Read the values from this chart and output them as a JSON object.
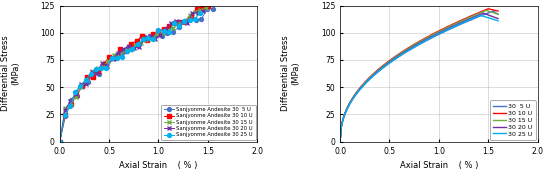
{
  "series": [
    {
      "label_left": "Sanjyonme Andesite 30  5 U",
      "label_right": "30  5 U",
      "color": "#4472C4",
      "marker": "o",
      "peak_strain": 1.55,
      "peak_stress": 120.0,
      "final_stress": 117.0,
      "conf": 5
    },
    {
      "label_left": "Sanjyonme Andesite 30 10 U",
      "label_right": "30 10 U",
      "color": "#FF0000",
      "marker": "s",
      "peak_strain": 1.5,
      "peak_stress": 122.0,
      "final_stress": 120.0,
      "conf": 10
    },
    {
      "label_left": "Sanjyonme Andesite 30 15 U",
      "label_right": "30 15 U",
      "color": "#70AD47",
      "marker": "x",
      "peak_strain": 1.48,
      "peak_stress": 120.5,
      "final_stress": 117.0,
      "conf": 15
    },
    {
      "label_left": "Sanjyonme Andesite 30 20 U",
      "label_right": "30 20 U",
      "color": "#7030A0",
      "marker": "x",
      "peak_strain": 1.45,
      "peak_stress": 118.0,
      "final_stress": 113.0,
      "conf": 20
    },
    {
      "label_left": "Sanjyonme Andesite 30 25 U",
      "label_right": "30 25 U",
      "color": "#00B0F0",
      "marker": "o",
      "peak_strain": 1.42,
      "peak_stress": 116.0,
      "final_stress": 111.0,
      "conf": 25
    }
  ],
  "ylabel": "Differential Stress",
  "yunits": "(MPa)",
  "xlabel": "Axial Strain",
  "xunits": "( % )",
  "xlim": [
    0.0,
    2.0
  ],
  "ylim": [
    0.0,
    125.0
  ],
  "yticks": [
    0.0,
    25.0,
    50.0,
    75.0,
    100.0,
    125.0
  ],
  "xticks": [
    0.0,
    0.5,
    1.0,
    1.5,
    2.0
  ],
  "bg_color": "#FFFFFF",
  "grid_color": "#AAAAAA"
}
